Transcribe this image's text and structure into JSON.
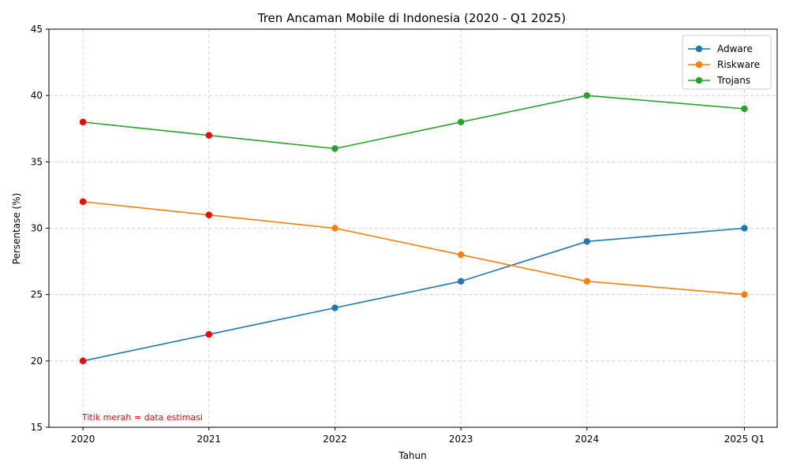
{
  "chart_data": {
    "type": "line",
    "title": "Tren Ancaman Mobile di Indonesia (2020 - Q1 2025)",
    "xlabel": "Tahun",
    "ylabel": "Persentase (%)",
    "x": [
      2020,
      2021,
      2022,
      2023,
      2024,
      2025.25
    ],
    "x_tick_labels": [
      "2020",
      "2021",
      "2022",
      "2023",
      "2024",
      "2025 Q1"
    ],
    "xlim": [
      2019.73,
      2025.51
    ],
    "ylim": [
      15,
      45
    ],
    "y_ticks": [
      15,
      20,
      25,
      30,
      35,
      40,
      45
    ],
    "grid": true,
    "legend_position": "top-right",
    "series": [
      {
        "name": "Adware",
        "color": "#1f77b4",
        "values": [
          20,
          22,
          24,
          26,
          29,
          30
        ]
      },
      {
        "name": "Riskware",
        "color": "#ff7f0e",
        "values": [
          32,
          31,
          30,
          28,
          26,
          25
        ]
      },
      {
        "name": "Trojans",
        "color": "#2ca02c",
        "values": [
          38,
          37,
          36,
          38,
          40,
          39
        ]
      }
    ],
    "estimated_points": [
      0,
      1
    ],
    "estimated_color": "#ff0000",
    "annotation": "Titik merah = data estimasi"
  }
}
